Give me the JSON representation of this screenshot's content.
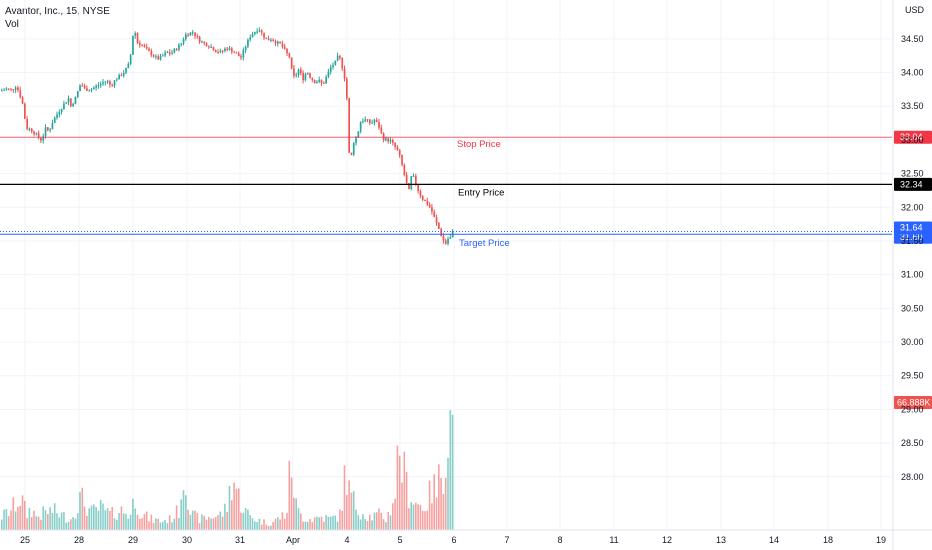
{
  "legend": {
    "title": "Avantor, Inc., 15, NYSE",
    "volume_label": "Vol"
  },
  "currency": "USD",
  "colors": {
    "up": "#26a69a",
    "down": "#ef5350",
    "stop": "#f23645",
    "entry": "#000000",
    "target": "#2962ff",
    "grid": "#f0f3fa",
    "axis_text": "#131722"
  },
  "chart_data": {
    "type": "candlestick",
    "symbol": "Avantor, Inc., 15, NYSE",
    "y_ticks": [
      34.5,
      34.0,
      33.5,
      33.0,
      32.5,
      32.0,
      31.5,
      31.0,
      30.5,
      30.0,
      29.5,
      29.0,
      28.5,
      28.0
    ],
    "x_ticks": [
      "25",
      "28",
      "29",
      "30",
      "31",
      "Apr",
      "4",
      "5",
      "6",
      "7",
      "8",
      "11",
      "12",
      "13",
      "14",
      "18",
      "19"
    ],
    "ylim": [
      27.7,
      34.72
    ],
    "levels": [
      {
        "name": "Stop Price",
        "value": 33.04,
        "badge": "33.04",
        "color": "#f23645"
      },
      {
        "name": "Entry Price",
        "value": 32.34,
        "badge": "32.34",
        "color": "#000000"
      },
      {
        "name": "Target Price",
        "value": 31.6,
        "badge": "31.60",
        "color": "#2962ff"
      }
    ],
    "last_price": {
      "value": 31.64,
      "badge": "31.64"
    },
    "last_volume": {
      "badge": "66.888K"
    },
    "price_path": [
      [
        0,
        33.73
      ],
      [
        6,
        33.76
      ],
      [
        11,
        33.74
      ],
      [
        14,
        33.78
      ],
      [
        15,
        33.8
      ],
      [
        18,
        33.72
      ],
      [
        20,
        33.62
      ],
      [
        22,
        33.52
      ],
      [
        24,
        33.32
      ],
      [
        26,
        33.18
      ],
      [
        30,
        33.15
      ],
      [
        34,
        33.1
      ],
      [
        38,
        33.03
      ],
      [
        40,
        33.0
      ],
      [
        42,
        33.05
      ],
      [
        45,
        33.18
      ],
      [
        48,
        33.12
      ],
      [
        52,
        33.28
      ],
      [
        58,
        33.42
      ],
      [
        64,
        33.55
      ],
      [
        68,
        33.62
      ],
      [
        70,
        33.5
      ],
      [
        74,
        33.6
      ],
      [
        80,
        33.84
      ],
      [
        84,
        33.75
      ],
      [
        90,
        33.75
      ],
      [
        96,
        33.8
      ],
      [
        102,
        33.85
      ],
      [
        106,
        33.88
      ],
      [
        110,
        33.8
      ],
      [
        115,
        33.9
      ],
      [
        120,
        33.96
      ],
      [
        124,
        34.02
      ],
      [
        128,
        34.12
      ],
      [
        130,
        34.28
      ],
      [
        132,
        34.55
      ],
      [
        134,
        34.62
      ],
      [
        136,
        34.45
      ],
      [
        140,
        34.42
      ],
      [
        145,
        34.35
      ],
      [
        150,
        34.28
      ],
      [
        155,
        34.22
      ],
      [
        158,
        34.2
      ],
      [
        162,
        34.25
      ],
      [
        166,
        34.3
      ],
      [
        170,
        34.28
      ],
      [
        175,
        34.35
      ],
      [
        180,
        34.42
      ],
      [
        184,
        34.55
      ],
      [
        188,
        34.58
      ],
      [
        192,
        34.6
      ],
      [
        196,
        34.52
      ],
      [
        200,
        34.46
      ],
      [
        205,
        34.42
      ],
      [
        210,
        34.38
      ],
      [
        215,
        34.32
      ],
      [
        220,
        34.3
      ],
      [
        225,
        34.36
      ],
      [
        230,
        34.34
      ],
      [
        235,
        34.28
      ],
      [
        240,
        34.22
      ],
      [
        245,
        34.4
      ],
      [
        250,
        34.56
      ],
      [
        255,
        34.62
      ],
      [
        258,
        34.65
      ],
      [
        262,
        34.56
      ],
      [
        266,
        34.48
      ],
      [
        270,
        34.5
      ],
      [
        275,
        34.45
      ],
      [
        280,
        34.42
      ],
      [
        285,
        34.3
      ],
      [
        289,
        34.22
      ],
      [
        292,
        33.92
      ],
      [
        295,
        33.96
      ],
      [
        298,
        34.05
      ],
      [
        302,
        33.9
      ],
      [
        306,
        34.02
      ],
      [
        310,
        33.92
      ],
      [
        314,
        33.86
      ],
      [
        318,
        33.88
      ],
      [
        322,
        33.82
      ],
      [
        326,
        33.95
      ],
      [
        330,
        34.08
      ],
      [
        334,
        34.14
      ],
      [
        338,
        34.26
      ],
      [
        342,
        34.05
      ],
      [
        343,
        34.02
      ],
      [
        346,
        33.62
      ],
      [
        347,
        32.86
      ],
      [
        350,
        32.72
      ],
      [
        353,
        32.98
      ],
      [
        356,
        33.05
      ],
      [
        360,
        33.28
      ],
      [
        365,
        33.3
      ],
      [
        370,
        33.24
      ],
      [
        374,
        33.3
      ],
      [
        378,
        33.2
      ],
      [
        382,
        33.02
      ],
      [
        386,
        33.0
      ],
      [
        390,
        32.98
      ],
      [
        394,
        32.9
      ],
      [
        398,
        32.8
      ],
      [
        402,
        32.58
      ],
      [
        405,
        32.38
      ],
      [
        408,
        32.24
      ],
      [
        411,
        32.5
      ],
      [
        414,
        32.4
      ],
      [
        418,
        32.22
      ],
      [
        422,
        32.12
      ],
      [
        426,
        32.06
      ],
      [
        430,
        31.98
      ],
      [
        434,
        31.82
      ],
      [
        438,
        31.68
      ],
      [
        442,
        31.52
      ],
      [
        445,
        31.46
      ],
      [
        448,
        31.56
      ],
      [
        450,
        31.54
      ],
      [
        452,
        31.64
      ]
    ],
    "volume": [
      [
        0,
        0.12
      ],
      [
        10,
        0.18
      ],
      [
        20,
        0.3
      ],
      [
        26,
        0.14
      ],
      [
        30,
        0.2
      ],
      [
        36,
        0.12
      ],
      [
        44,
        0.16
      ],
      [
        52,
        0.18
      ],
      [
        60,
        0.14
      ],
      [
        70,
        0.1
      ],
      [
        80,
        0.3
      ],
      [
        90,
        0.16
      ],
      [
        100,
        0.2
      ],
      [
        110,
        0.14
      ],
      [
        120,
        0.18
      ],
      [
        130,
        0.14
      ],
      [
        134,
        0.32
      ],
      [
        140,
        0.15
      ],
      [
        150,
        0.1
      ],
      [
        160,
        0.08
      ],
      [
        170,
        0.1
      ],
      [
        178,
        0.18
      ],
      [
        184,
        0.58
      ],
      [
        190,
        0.14
      ],
      [
        200,
        0.1
      ],
      [
        210,
        0.12
      ],
      [
        220,
        0.14
      ],
      [
        226,
        0.2
      ],
      [
        232,
        0.5
      ],
      [
        238,
        0.3
      ],
      [
        244,
        0.18
      ],
      [
        250,
        0.12
      ],
      [
        260,
        0.08
      ],
      [
        270,
        0.06
      ],
      [
        280,
        0.12
      ],
      [
        286,
        0.16
      ],
      [
        290,
        0.64
      ],
      [
        296,
        0.18
      ],
      [
        302,
        0.12
      ],
      [
        310,
        0.1
      ],
      [
        320,
        0.12
      ],
      [
        330,
        0.1
      ],
      [
        340,
        0.14
      ],
      [
        345,
        0.58
      ],
      [
        348,
        0.36
      ],
      [
        352,
        0.28
      ],
      [
        356,
        0.2
      ],
      [
        362,
        0.16
      ],
      [
        370,
        0.12
      ],
      [
        378,
        0.14
      ],
      [
        386,
        0.1
      ],
      [
        394,
        0.32
      ],
      [
        398,
        0.78
      ],
      [
        402,
        0.58
      ],
      [
        406,
        0.4
      ],
      [
        410,
        0.32
      ],
      [
        414,
        0.26
      ],
      [
        420,
        0.22
      ],
      [
        426,
        0.24
      ],
      [
        432,
        0.4
      ],
      [
        436,
        0.34
      ],
      [
        440,
        0.56
      ],
      [
        444,
        0.62
      ],
      [
        448,
        1.0
      ],
      [
        452,
        0.96
      ]
    ]
  }
}
